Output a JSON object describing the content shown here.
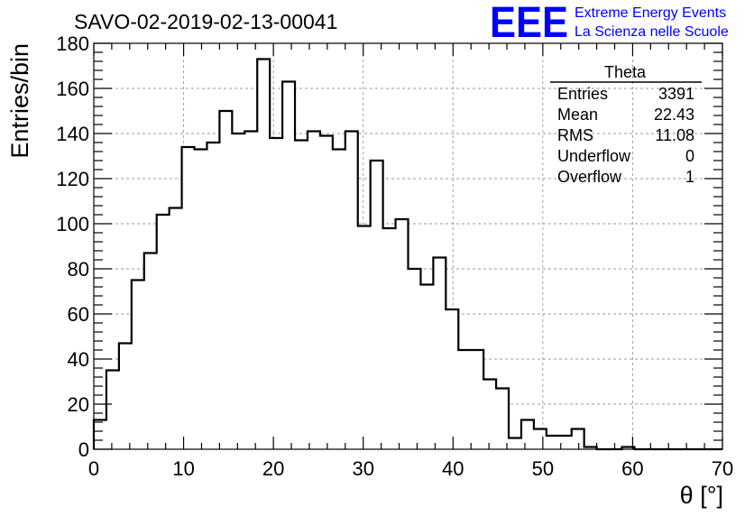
{
  "chart_data": {
    "type": "bar",
    "title": "SAVO-02-2019-02-13-00041",
    "xlabel": "θ [°]",
    "ylabel": "Entries/bin",
    "xlim": [
      0,
      70
    ],
    "ylim": [
      0,
      180
    ],
    "bin_width": 1.4,
    "grid": true,
    "x_ticks": [
      "0",
      "10",
      "20",
      "30",
      "40",
      "50",
      "60",
      "70"
    ],
    "y_ticks": [
      "0",
      "20",
      "40",
      "60",
      "80",
      "100",
      "120",
      "140",
      "160",
      "180"
    ],
    "values": [
      13,
      35,
      47,
      75,
      87,
      104,
      107,
      134,
      133,
      136,
      150,
      140,
      141,
      173,
      138,
      163,
      137,
      141,
      139,
      133,
      141,
      99,
      128,
      98,
      102,
      80,
      73,
      85,
      62,
      44,
      44,
      31,
      27,
      5,
      13,
      9,
      6,
      6,
      9,
      1,
      0,
      0,
      1,
      0,
      0,
      0,
      0,
      0,
      0,
      0
    ],
    "series_color": "#000000",
    "stats": {
      "name": "Theta",
      "rows": [
        {
          "label": "Entries",
          "value": "3391"
        },
        {
          "label": "Mean",
          "value": "22.43"
        },
        {
          "label": "RMS",
          "value": "11.08"
        },
        {
          "label": "Underflow",
          "value": "0"
        },
        {
          "label": "Overflow",
          "value": "1"
        }
      ]
    }
  },
  "branding": {
    "logo": "EEE",
    "line1": "Extreme Energy Events",
    "line2": "La Scienza nelle Scuole",
    "color": "#0000ff"
  }
}
